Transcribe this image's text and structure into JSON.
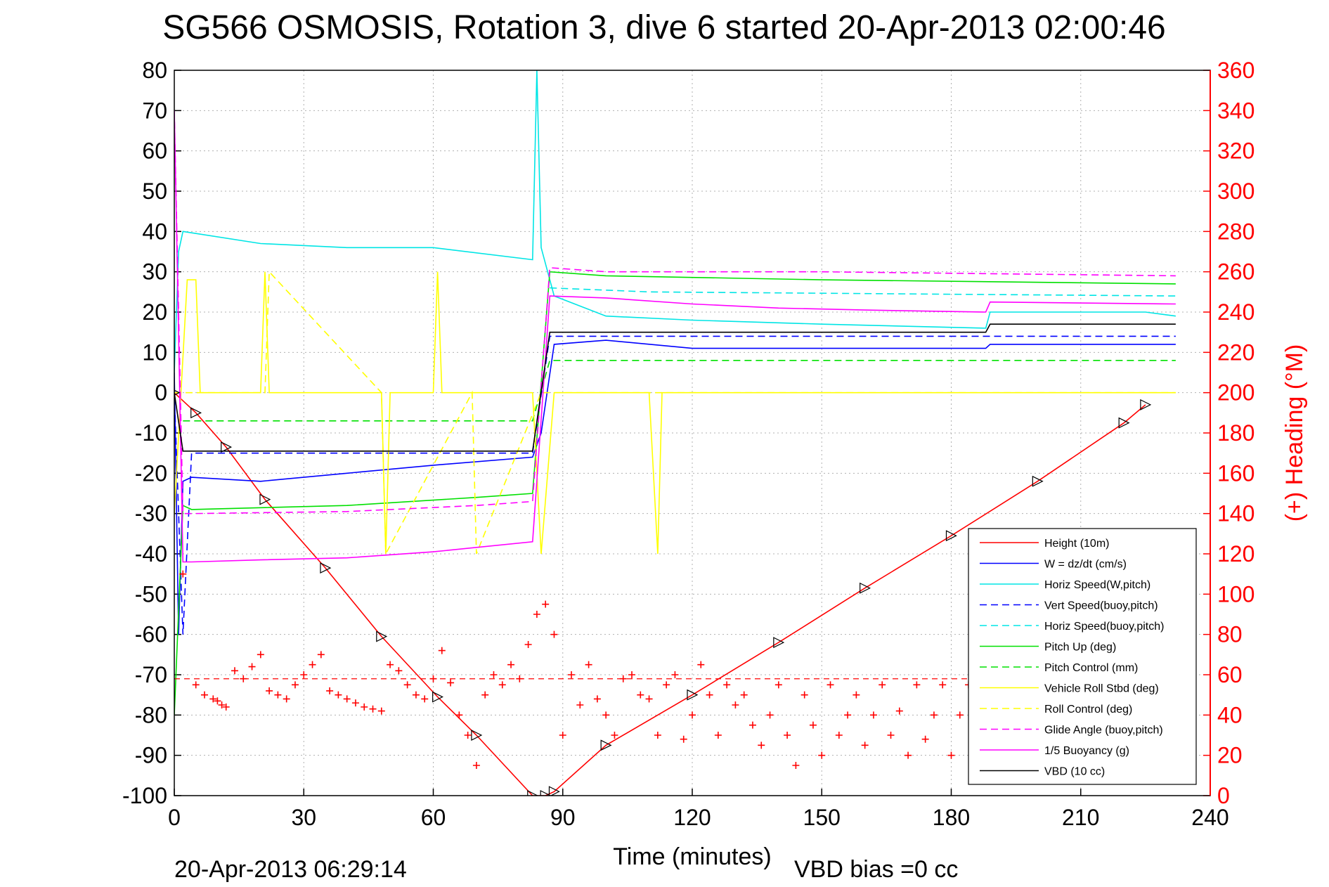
{
  "chart_data": {
    "type": "line",
    "title": "SG566 OSMOSIS, Rotation 3, dive 6 started 20-Apr-2013 02:00:46",
    "xlabel": "Time (minutes)",
    "ylabel_right": "(+) Heading (°M)",
    "xlim": [
      0,
      240
    ],
    "ylim": [
      -100,
      80
    ],
    "ylim_right": [
      0,
      360
    ],
    "x_ticks": [
      "0",
      "30",
      "60",
      "90",
      "120",
      "150",
      "180",
      "210",
      "240"
    ],
    "y_ticks": [
      "80",
      "70",
      "60",
      "50",
      "40",
      "30",
      "20",
      "10",
      "0",
      "-10",
      "-20",
      "-30",
      "-40",
      "-50",
      "-60",
      "-70",
      "-80",
      "-90",
      "-100"
    ],
    "y_ticks_right": [
      "360",
      "340",
      "320",
      "300",
      "280",
      "260",
      "240",
      "220",
      "200",
      "180",
      "160",
      "140",
      "120",
      "100",
      "80",
      "60",
      "40",
      "20",
      "0"
    ],
    "grid": true,
    "legend_position": "bottom-right",
    "footer_left": "20-Apr-2013 06:29:14",
    "footer_right": "VBD bias =0 cc",
    "series": [
      {
        "name": "Height (10m)",
        "color": "#ff0000",
        "style": "solid",
        "x": [
          0,
          5,
          12,
          21,
          35,
          48,
          61,
          70,
          83,
          86,
          88,
          100,
          120,
          140,
          160,
          180,
          200,
          220,
          225
        ],
        "y": [
          0,
          -5,
          -13.5,
          -26.5,
          -43.5,
          -60.5,
          -75.5,
          -85,
          -100,
          -100,
          -99,
          -87.5,
          -75,
          -62,
          -48.5,
          -35.5,
          -22,
          -7.5,
          -3
        ]
      },
      {
        "name": "W = dz/dt (cm/s)",
        "color": "#0000ff",
        "style": "solid",
        "x": [
          0,
          1,
          2,
          4,
          20,
          40,
          60,
          83,
          85,
          88,
          100,
          120,
          150,
          188,
          189,
          225,
          232
        ],
        "y": [
          5,
          -60,
          -22,
          -21,
          -22,
          -20,
          -18,
          -16,
          -10,
          12,
          13,
          11,
          11,
          11,
          12,
          12,
          12
        ]
      },
      {
        "name": "Horiz Speed(W,pitch)",
        "color": "#00e5e5",
        "style": "solid",
        "x": [
          0,
          1,
          2,
          20,
          40,
          60,
          83,
          84,
          85,
          88,
          100,
          120,
          150,
          188,
          189,
          225,
          232
        ],
        "y": [
          5,
          35,
          40,
          37,
          36,
          36,
          33,
          80,
          36,
          24,
          19,
          18,
          17,
          16,
          20,
          20,
          19
        ]
      },
      {
        "name": "Vert Speed(buoy,pitch)",
        "color": "#0000ff",
        "style": "dashed",
        "x": [
          0,
          2,
          4,
          83,
          87,
          232
        ],
        "y": [
          0,
          -60,
          -15,
          -15,
          14,
          14
        ]
      },
      {
        "name": "Horiz Speed(buoy,pitch)",
        "color": "#00e5e5",
        "style": "dashed",
        "x": [
          87,
          110,
          232
        ],
        "y": [
          26,
          25,
          24
        ]
      },
      {
        "name": "Pitch Up (deg)",
        "color": "#00e000",
        "style": "solid",
        "x": [
          0,
          2,
          4,
          40,
          70,
          83,
          87,
          100,
          150,
          232
        ],
        "y": [
          -80,
          -28,
          -29,
          -28,
          -26,
          -25,
          30,
          29,
          28,
          27
        ]
      },
      {
        "name": "Pitch Control (mm)",
        "color": "#00e000",
        "style": "dashed",
        "x": [
          2,
          83,
          87,
          232
        ],
        "y": [
          -7,
          -7,
          8,
          8
        ]
      },
      {
        "name": "Vehicle Roll Stbd (deg)",
        "color": "#ffff00",
        "style": "solid",
        "x": [
          0,
          3,
          5,
          6,
          20,
          21,
          22,
          48,
          49,
          50,
          60,
          61,
          62,
          83,
          85,
          88,
          90,
          110,
          112,
          113,
          114,
          232
        ],
        "y": [
          -30,
          28,
          28,
          0,
          0,
          30,
          0,
          0,
          -40,
          0,
          0,
          30,
          0,
          0,
          -40,
          0,
          0,
          0,
          -40,
          0,
          0,
          0
        ]
      },
      {
        "name": "Roll Control (deg)",
        "color": "#ffff00",
        "style": "dashed",
        "x": [
          0,
          21,
          22,
          48,
          49,
          69,
          70,
          85,
          90,
          232
        ],
        "y": [
          0,
          0,
          30,
          0,
          -40,
          0,
          -40,
          0,
          0,
          0
        ]
      },
      {
        "name": "Glide Angle (buoy,pitch)",
        "color": "#ff00ff",
        "style": "dashed",
        "x": [
          0,
          2,
          4,
          40,
          70,
          83,
          87,
          100,
          150,
          232
        ],
        "y": [
          70,
          -30,
          -30,
          -29.5,
          -28,
          -27,
          31,
          30,
          30,
          29
        ]
      },
      {
        "name": "1/5 Buoyancy (g)",
        "color": "#ff00ff",
        "style": "solid",
        "x": [
          0,
          2,
          4,
          20,
          40,
          60,
          83,
          87,
          100,
          120,
          140,
          160,
          188,
          189,
          232
        ],
        "y": [
          70,
          -42,
          -42,
          -41.5,
          -41,
          -39.5,
          -37,
          24,
          23.5,
          22,
          21,
          20.5,
          20,
          22.5,
          22
        ]
      },
      {
        "name": "VBD (10 cc)",
        "color": "#000000",
        "style": "solid",
        "x": [
          0,
          2,
          3,
          83,
          87,
          188,
          189,
          232
        ],
        "y": [
          0,
          -14.5,
          -14.5,
          -14.5,
          15,
          15,
          17,
          17
        ]
      }
    ],
    "heading": {
      "name": "Heading",
      "color": "#ff0000",
      "target_value": 58,
      "x": [
        2,
        5,
        7,
        9,
        10,
        11,
        12,
        14,
        16,
        18,
        20,
        22,
        24,
        26,
        28,
        30,
        32,
        34,
        36,
        38,
        40,
        42,
        44,
        46,
        48,
        50,
        52,
        54,
        56,
        58,
        60,
        62,
        64,
        66,
        68,
        70,
        72,
        74,
        76,
        78,
        80,
        82,
        84,
        86,
        88,
        90,
        92,
        94,
        96,
        98,
        100,
        102,
        104,
        106,
        108,
        110,
        112,
        114,
        116,
        118,
        120,
        122,
        124,
        126,
        128,
        130,
        132,
        134,
        136,
        138,
        140,
        142,
        144,
        146,
        148,
        150,
        152,
        154,
        156,
        158,
        160,
        162,
        164,
        166,
        168,
        170,
        172,
        174,
        176,
        178,
        180,
        182,
        184,
        186,
        188,
        190,
        192,
        194,
        196,
        198,
        200,
        202,
        204,
        206,
        208,
        210,
        212,
        214,
        216,
        218,
        220,
        222,
        224,
        226,
        228
      ],
      "y": [
        110,
        55,
        50,
        48,
        47,
        45,
        44,
        62,
        58,
        64,
        70,
        52,
        50,
        48,
        55,
        60,
        65,
        70,
        52,
        50,
        48,
        46,
        44,
        43,
        42,
        65,
        62,
        55,
        50,
        48,
        58,
        72,
        56,
        40,
        30,
        15,
        50,
        60,
        55,
        65,
        58,
        75,
        90,
        95,
        80,
        30,
        60,
        45,
        65,
        48,
        40,
        30,
        58,
        60,
        50,
        48,
        30,
        55,
        60,
        28,
        40,
        65,
        50,
        30,
        55,
        45,
        50,
        35,
        25,
        40,
        55,
        30,
        15,
        50,
        35,
        20,
        55,
        30,
        40,
        50,
        25,
        40,
        55,
        30,
        42,
        20,
        55,
        28,
        40,
        55,
        20,
        40,
        55,
        30,
        45,
        20,
        55,
        30,
        40,
        55,
        22,
        40,
        55,
        30,
        45,
        20,
        55,
        30,
        42,
        55,
        25,
        40,
        58,
        30,
        45
      ]
    }
  }
}
